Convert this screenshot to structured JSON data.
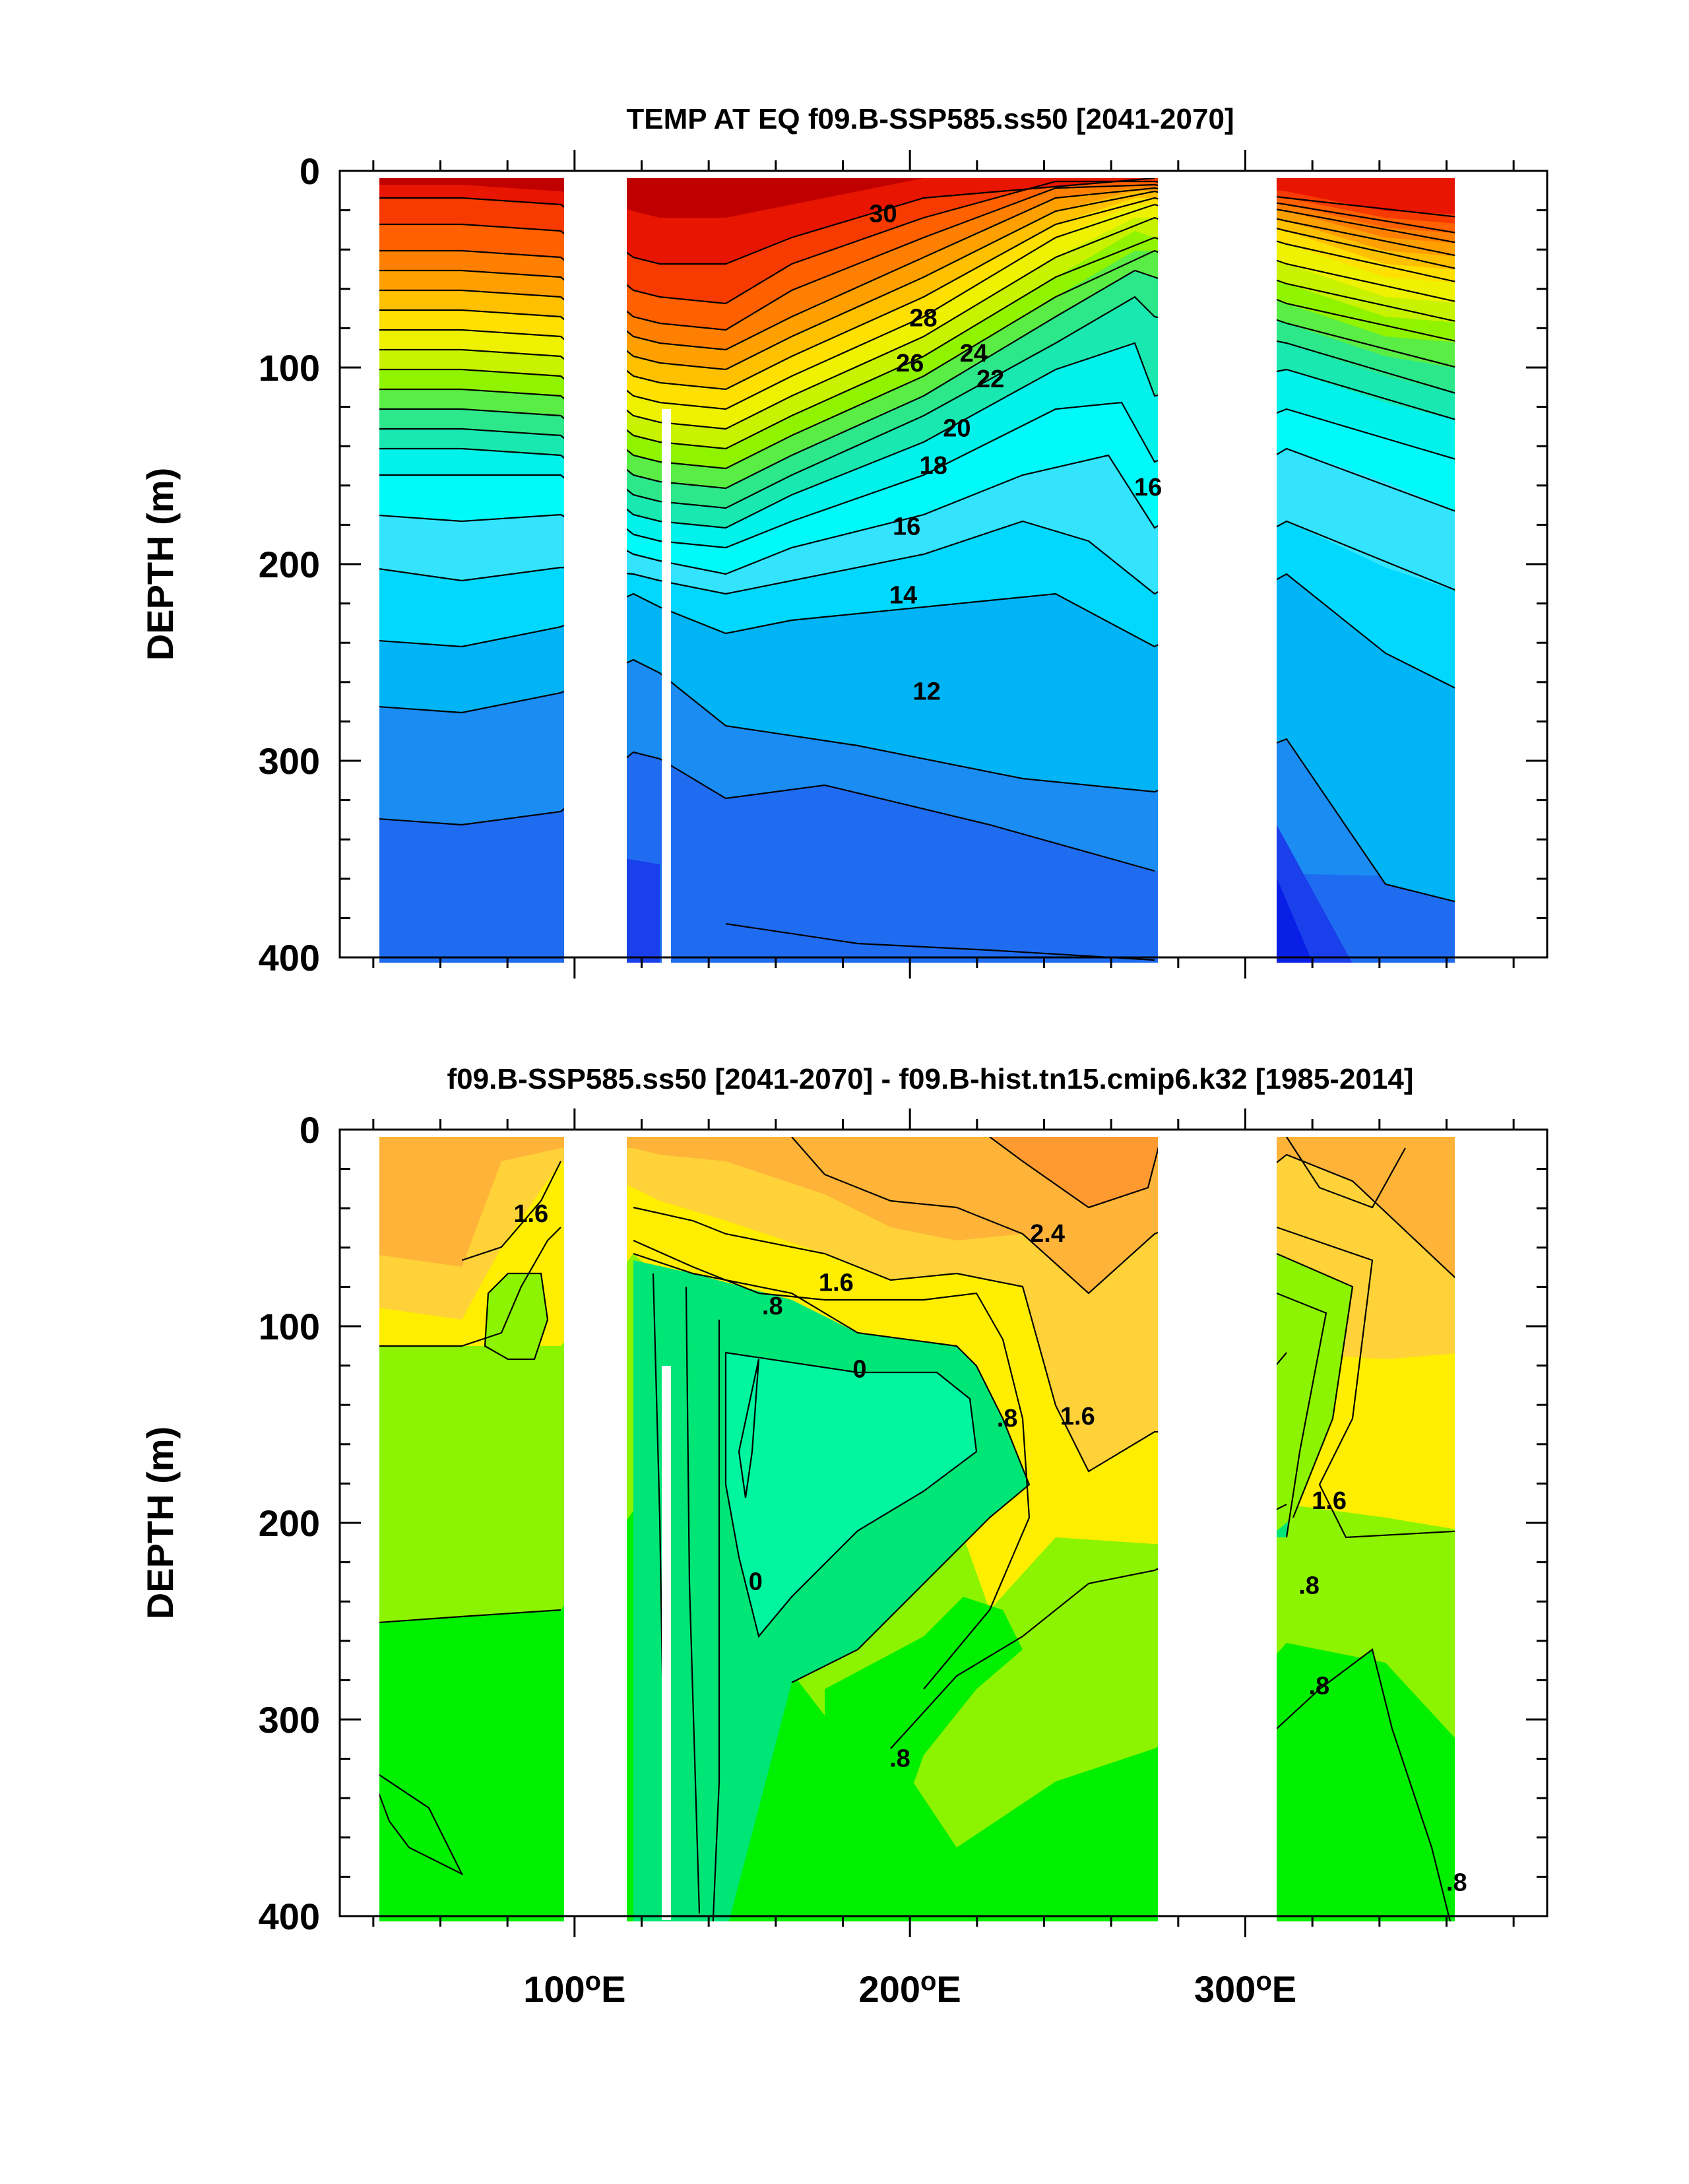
{
  "chart_data": [
    {
      "type": "heatmap",
      "subtype": "filled-contour",
      "title": "TEMP AT EQ f09.B-SSP585.ss50 [2041-2070]",
      "xlabel": "",
      "ylabel": "DEPTH (m)",
      "xlim": [
        30,
        390
      ],
      "ylim": [
        400,
        0
      ],
      "yticks": [
        0,
        100,
        200,
        300,
        400
      ],
      "xticks": [
        100,
        200,
        300
      ],
      "xtick_labels": [
        "100°E",
        "200°E",
        "300°E"
      ],
      "xtick_values": [
        "100",
        "200",
        "300"
      ],
      "x_unit": "E",
      "data_extent": [
        [
          43,
          98
        ],
        [
          117,
          278
        ],
        [
          315,
          368
        ]
      ],
      "contour_interval": 1,
      "colors": [
        "#0a1fe6",
        "#1f55ee",
        "#1a8cf2",
        "#00b4f5",
        "#00d8ff",
        "#34e4ff",
        "#00f2ea",
        "#19e8b0",
        "#2ce88a",
        "#5aed46",
        "#90f400",
        "#c8f200",
        "#eef200",
        "#ffe000",
        "#ffc000",
        "#ffa000",
        "#ff8000",
        "#ff6000",
        "#f63a00",
        "#e81500",
        "#c00000"
      ],
      "contour_labels": [
        {
          "x": 192,
          "depth": 22,
          "text": "30"
        },
        {
          "x": 204,
          "depth": 75,
          "text": "28"
        },
        {
          "x": 200,
          "depth": 98,
          "text": "26"
        },
        {
          "x": 219,
          "depth": 93,
          "text": "24"
        },
        {
          "x": 224,
          "depth": 106,
          "text": "22"
        },
        {
          "x": 214,
          "depth": 131,
          "text": "20"
        },
        {
          "x": 207,
          "depth": 150,
          "text": "18"
        },
        {
          "x": 199,
          "depth": 181,
          "text": "16"
        },
        {
          "x": 271,
          "depth": 161,
          "text": "16"
        },
        {
          "x": 198,
          "depth": 216,
          "text": "14"
        },
        {
          "x": 205,
          "depth": 265,
          "text": "12"
        }
      ]
    },
    {
      "type": "heatmap",
      "subtype": "filled-contour",
      "title": "f09.B-SSP585.ss50 [2041-2070] - f09.B-hist.tn15.cmip6.k32 [1985-2014]",
      "xlabel": "",
      "ylabel": "DEPTH (m)",
      "xlim": [
        30,
        390
      ],
      "ylim": [
        400,
        0
      ],
      "yticks": [
        0,
        100,
        200,
        300,
        400
      ],
      "xticks": [
        100,
        200,
        300
      ],
      "xtick_labels": [
        "100°E",
        "200°E",
        "300°E"
      ],
      "xtick_values": [
        "100",
        "200",
        "300"
      ],
      "x_unit": "E",
      "data_extent": [
        [
          43,
          98
        ],
        [
          117,
          278
        ],
        [
          315,
          368
        ]
      ],
      "contour_interval": 0.4,
      "colors": [
        "#00f5a0",
        "#00e676",
        "#00f000",
        "#8cf400",
        "#ffee00",
        "#ffd23a",
        "#ffb338",
        "#ff9a30"
      ],
      "contour_labels": [
        {
          "x": 87,
          "depth": 43,
          "text": "1.6"
        },
        {
          "x": 178,
          "depth": 78,
          "text": "1.6"
        },
        {
          "x": 159,
          "depth": 90,
          "text": ".8"
        },
        {
          "x": 241,
          "depth": 53,
          "text": "2.4"
        },
        {
          "x": 185,
          "depth": 122,
          "text": "0"
        },
        {
          "x": 229,
          "depth": 147,
          "text": ".8"
        },
        {
          "x": 250,
          "depth": 146,
          "text": "1.6"
        },
        {
          "x": 154,
          "depth": 230,
          "text": "0"
        },
        {
          "x": 325,
          "depth": 189,
          "text": "1.6"
        },
        {
          "x": 319,
          "depth": 232,
          "text": ".8"
        },
        {
          "x": 322,
          "depth": 283,
          "text": ".8"
        },
        {
          "x": 197,
          "depth": 320,
          "text": ".8"
        },
        {
          "x": 363,
          "depth": 383,
          "text": ".8"
        }
      ]
    }
  ]
}
